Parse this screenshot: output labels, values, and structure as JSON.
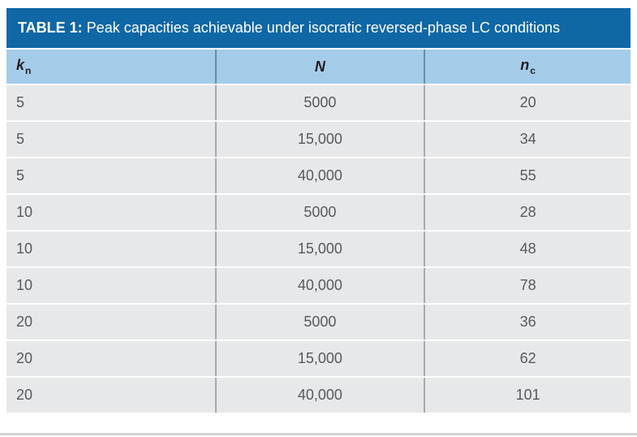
{
  "header": {
    "title_label": "TABLE 1:",
    "title_text": " Peak capacities achievable under isocratic reversed-phase LC conditions"
  },
  "colors": {
    "title_bg": "#0f67a5",
    "header_bg": "#a4cce9",
    "row_bg": "#e7e8e9",
    "data_text": "#58595b",
    "header_text": "#231f20",
    "data_divider": "#a7a9ac",
    "header_divider": "#6a8ba5"
  },
  "chart_data": {
    "type": "table",
    "title": "TABLE 1: Peak capacities achievable under isocratic reversed-phase LC conditions",
    "columns": [
      {
        "main": "k",
        "sub": "n"
      },
      {
        "main": "N",
        "sub": ""
      },
      {
        "main": "n",
        "sub": "c"
      }
    ],
    "rows": [
      [
        "5",
        "5000",
        "20"
      ],
      [
        "5",
        "15,000",
        "34"
      ],
      [
        "5",
        "40,000",
        "55"
      ],
      [
        "10",
        "5000",
        "28"
      ],
      [
        "10",
        "15,000",
        "48"
      ],
      [
        "10",
        "40,000",
        "78"
      ],
      [
        "20",
        "5000",
        "36"
      ],
      [
        "20",
        "15,000",
        "62"
      ],
      [
        "20",
        "40,000",
        "101"
      ]
    ]
  }
}
